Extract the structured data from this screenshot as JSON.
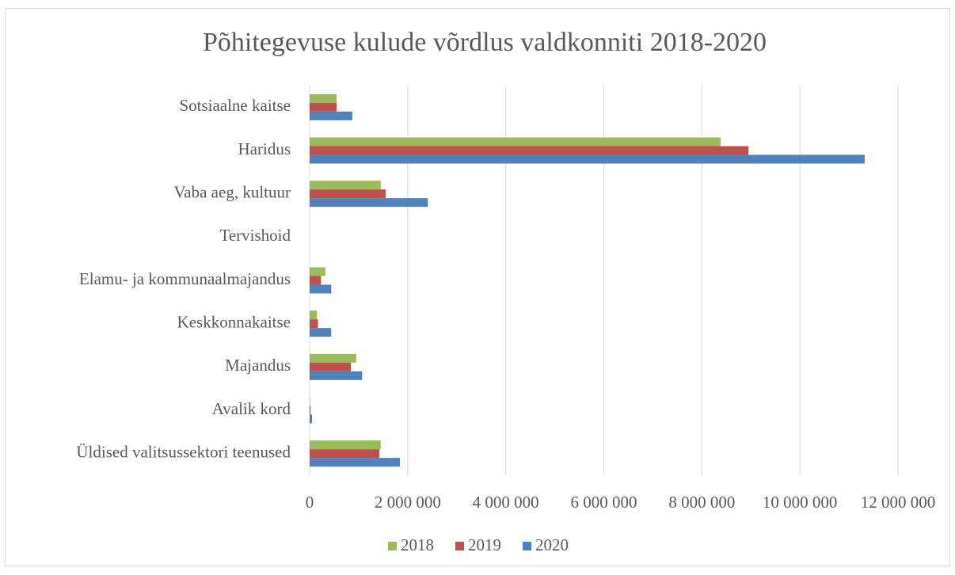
{
  "chart_data": {
    "type": "hbar",
    "title": "Põhitegevuse kulude võrdlus valdkonniti 2018-2020",
    "categories": [
      "Sotsiaalne kaitse",
      "Haridus",
      "Vaba aeg, kultuur",
      "Tervishoid",
      "Elamu- ja kommunaalmajandus",
      "Keskkonnakaitse",
      "Majandus",
      "Avalik kord",
      "Üldised valitsussektori teenused"
    ],
    "series": [
      {
        "name": "2018",
        "color": "#9bbb59",
        "values": [
          550000,
          8380000,
          1450000,
          0,
          320000,
          150000,
          950000,
          10000,
          1450000
        ]
      },
      {
        "name": "2019",
        "color": "#c0504d",
        "values": [
          550000,
          8950000,
          1550000,
          0,
          230000,
          170000,
          840000,
          20000,
          1420000
        ]
      },
      {
        "name": "2020",
        "color": "#4f81bd",
        "values": [
          870000,
          11320000,
          2410000,
          0,
          440000,
          440000,
          1070000,
          50000,
          1840000
        ]
      }
    ],
    "xlim": [
      0,
      12000000
    ],
    "xticks": [
      0,
      {
        "value": 2000000,
        "label": "2 000 000"
      },
      {
        "value": 4000000,
        "label": "4 000 000"
      },
      {
        "value": 6000000,
        "label": "6 000 000"
      },
      {
        "value": 8000000,
        "label": "8 000 000"
      },
      {
        "value": 10000000,
        "label": "10 000 000"
      },
      {
        "value": 12000000,
        "label": "12 000 000"
      }
    ],
    "grid": true,
    "legend": "bottom"
  }
}
